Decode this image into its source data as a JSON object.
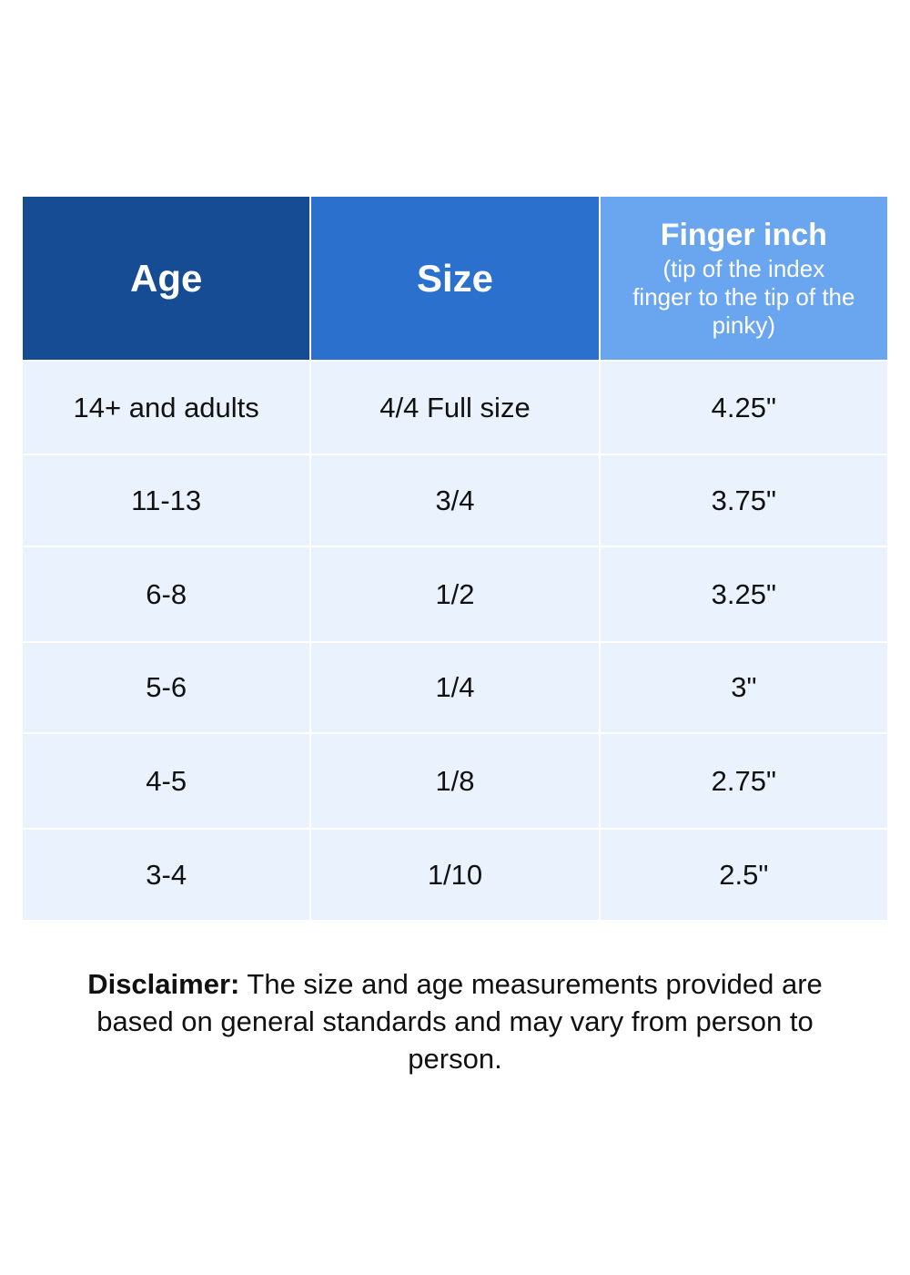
{
  "table": {
    "columns": [
      {
        "title": "Age"
      },
      {
        "title": "Size"
      },
      {
        "title": "Finger inch",
        "subtitle": "(tip of the index finger to the tip of the pinky)"
      }
    ],
    "rows": [
      [
        "14+ and adults",
        "4/4 Full size",
        "4.25\""
      ],
      [
        "11-13",
        "3/4",
        "3.75\""
      ],
      [
        "6-8",
        "1/2",
        "3.25\""
      ],
      [
        "5-6",
        "1/4",
        "3\""
      ],
      [
        "4-5",
        "1/8",
        "2.75\""
      ],
      [
        "3-4",
        "1/10",
        "2.5\""
      ]
    ]
  },
  "disclaimer": {
    "label": "Disclaimer:",
    "text": "The size and age measurements provided are based on general standards and may vary from person to person."
  }
}
